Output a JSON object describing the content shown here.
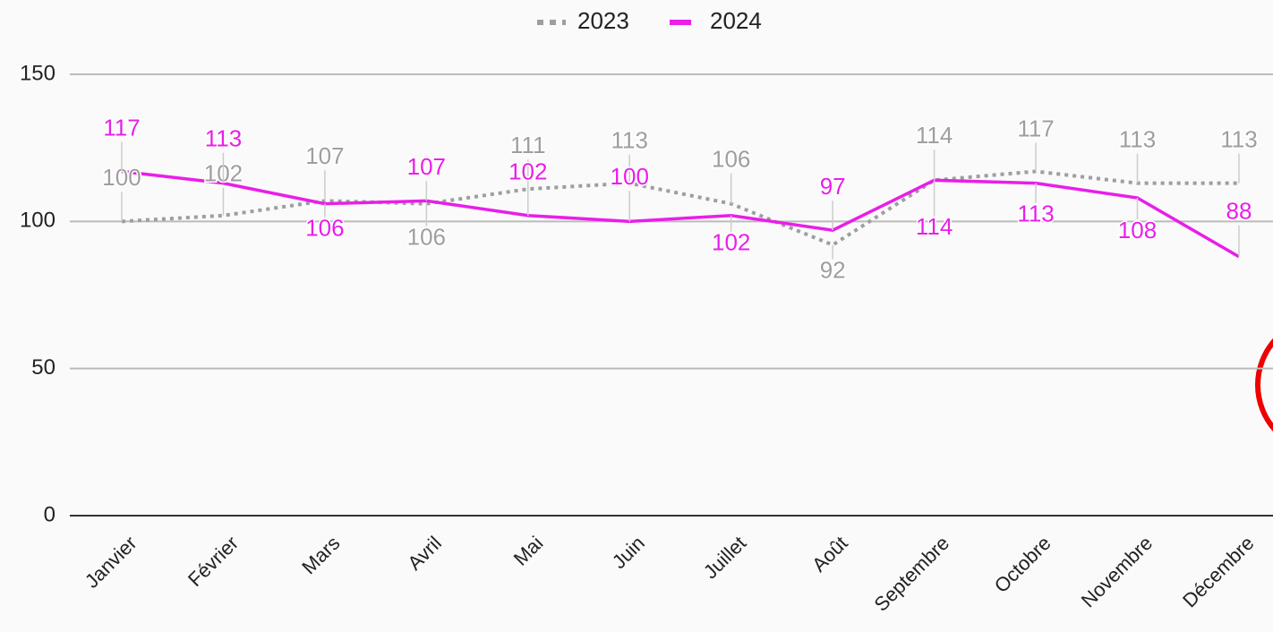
{
  "chart_data": {
    "type": "line",
    "categories": [
      "Janvier",
      "Février",
      "Mars",
      "Avril",
      "Mai",
      "Juin",
      "Juillet",
      "Août",
      "Septembre",
      "Octobre",
      "Novembre",
      "Décembre"
    ],
    "series": [
      {
        "name": "2023",
        "color": "#9e9e9e",
        "dashed": true,
        "values": [
          100,
          102,
          107,
          106,
          111,
          113,
          106,
          92,
          114,
          117,
          113,
          113
        ]
      },
      {
        "name": "2024",
        "color": "#e91ee9",
        "dashed": false,
        "values": [
          117,
          113,
          106,
          107,
          102,
          100,
          102,
          97,
          114,
          113,
          108,
          88
        ]
      }
    ],
    "ylim": [
      0,
      150
    ],
    "yticks": [
      0,
      50,
      100,
      150
    ],
    "grid": true,
    "legend": "top"
  }
}
